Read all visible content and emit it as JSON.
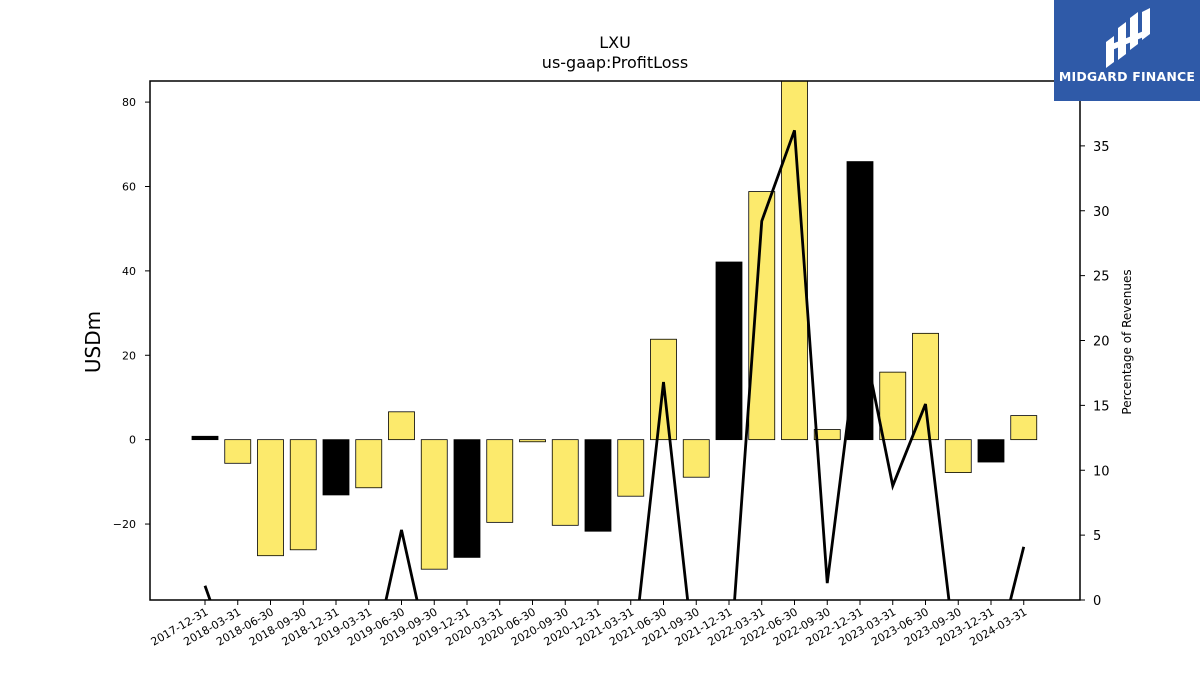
{
  "logo": {
    "text": "MIDGARD FINANCE"
  },
  "chart_data": {
    "type": "bar",
    "title": "LXU",
    "subtitle": "us-gaap:ProfitLoss",
    "ylabel": "USDm",
    "y2label": "Percentage of Revenues",
    "ylim": [
      -38,
      85
    ],
    "y2lim": [
      0,
      40
    ],
    "yticks": [
      -20,
      0,
      20,
      40,
      60,
      80
    ],
    "y2ticks": [
      0,
      5,
      10,
      15,
      20,
      25,
      30,
      35
    ],
    "ytick_labels": [
      "−20",
      "0",
      "20",
      "40",
      "60",
      "80"
    ],
    "y2tick_labels": [
      "0",
      "5",
      "10",
      "15",
      "20",
      "25",
      "30",
      "35"
    ],
    "categories": [
      "2017-12-31",
      "2018-03-31",
      "2018-06-30",
      "2018-09-30",
      "2018-12-31",
      "2019-03-31",
      "2019-06-30",
      "2019-09-30",
      "2019-12-31",
      "2020-03-31",
      "2020-06-30",
      "2020-09-30",
      "2020-12-31",
      "2021-03-31",
      "2021-06-30",
      "2021-09-30",
      "2021-12-31",
      "2022-03-31",
      "2022-06-30",
      "2022-09-30",
      "2022-12-31",
      "2023-03-31",
      "2023-06-30",
      "2023-09-30",
      "2023-12-31",
      "2024-03-31"
    ],
    "values": [
      0.8,
      -5.6,
      -27.5,
      -26.1,
      -13.1,
      -11.4,
      6.6,
      -30.7,
      -27.9,
      -19.6,
      -0.5,
      -20.3,
      -21.7,
      -13.4,
      23.8,
      -8.9,
      42.1,
      58.8,
      85.0,
      2.4,
      65.9,
      16.0,
      25.2,
      -7.8,
      -5.3,
      5.7
    ],
    "quarter_end_year": [
      true,
      false,
      false,
      false,
      true,
      false,
      false,
      false,
      true,
      false,
      false,
      false,
      true,
      false,
      false,
      false,
      true,
      false,
      false,
      false,
      true,
      false,
      false,
      false,
      true,
      false
    ],
    "percent_of_revenues": [
      1.1,
      null,
      null,
      null,
      null,
      null,
      5.4,
      null,
      null,
      null,
      null,
      null,
      null,
      null,
      16.8,
      null,
      null,
      29.2,
      36.2,
      1.3,
      21.3,
      8.8,
      15.1,
      null,
      null,
      4.1
    ],
    "colors": {
      "quarter": "#fcea6c",
      "year_end": "#000000",
      "line": "#000000"
    },
    "grid": false,
    "legend": "none"
  }
}
